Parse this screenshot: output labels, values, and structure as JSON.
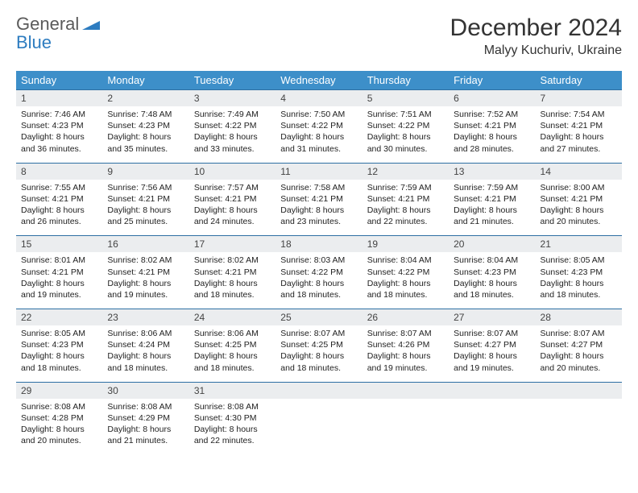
{
  "logo": {
    "line1": "General",
    "line2": "Blue"
  },
  "title": "December 2024",
  "location": "Malyy Kuchuriv, Ukraine",
  "colors": {
    "header_bg": "#3d8fc9",
    "header_text": "#ffffff",
    "num_row_bg": "#ebedef",
    "row_border": "#2d6fa3",
    "text": "#222222",
    "logo_gray": "#5a5a5a",
    "logo_blue": "#2d7cc0"
  },
  "day_names": [
    "Sunday",
    "Monday",
    "Tuesday",
    "Wednesday",
    "Thursday",
    "Friday",
    "Saturday"
  ],
  "weeks": [
    [
      {
        "n": "1",
        "sr": "7:46 AM",
        "ss": "4:23 PM",
        "dl": "8 hours and 36 minutes."
      },
      {
        "n": "2",
        "sr": "7:48 AM",
        "ss": "4:23 PM",
        "dl": "8 hours and 35 minutes."
      },
      {
        "n": "3",
        "sr": "7:49 AM",
        "ss": "4:22 PM",
        "dl": "8 hours and 33 minutes."
      },
      {
        "n": "4",
        "sr": "7:50 AM",
        "ss": "4:22 PM",
        "dl": "8 hours and 31 minutes."
      },
      {
        "n": "5",
        "sr": "7:51 AM",
        "ss": "4:22 PM",
        "dl": "8 hours and 30 minutes."
      },
      {
        "n": "6",
        "sr": "7:52 AM",
        "ss": "4:21 PM",
        "dl": "8 hours and 28 minutes."
      },
      {
        "n": "7",
        "sr": "7:54 AM",
        "ss": "4:21 PM",
        "dl": "8 hours and 27 minutes."
      }
    ],
    [
      {
        "n": "8",
        "sr": "7:55 AM",
        "ss": "4:21 PM",
        "dl": "8 hours and 26 minutes."
      },
      {
        "n": "9",
        "sr": "7:56 AM",
        "ss": "4:21 PM",
        "dl": "8 hours and 25 minutes."
      },
      {
        "n": "10",
        "sr": "7:57 AM",
        "ss": "4:21 PM",
        "dl": "8 hours and 24 minutes."
      },
      {
        "n": "11",
        "sr": "7:58 AM",
        "ss": "4:21 PM",
        "dl": "8 hours and 23 minutes."
      },
      {
        "n": "12",
        "sr": "7:59 AM",
        "ss": "4:21 PM",
        "dl": "8 hours and 22 minutes."
      },
      {
        "n": "13",
        "sr": "7:59 AM",
        "ss": "4:21 PM",
        "dl": "8 hours and 21 minutes."
      },
      {
        "n": "14",
        "sr": "8:00 AM",
        "ss": "4:21 PM",
        "dl": "8 hours and 20 minutes."
      }
    ],
    [
      {
        "n": "15",
        "sr": "8:01 AM",
        "ss": "4:21 PM",
        "dl": "8 hours and 19 minutes."
      },
      {
        "n": "16",
        "sr": "8:02 AM",
        "ss": "4:21 PM",
        "dl": "8 hours and 19 minutes."
      },
      {
        "n": "17",
        "sr": "8:02 AM",
        "ss": "4:21 PM",
        "dl": "8 hours and 18 minutes."
      },
      {
        "n": "18",
        "sr": "8:03 AM",
        "ss": "4:22 PM",
        "dl": "8 hours and 18 minutes."
      },
      {
        "n": "19",
        "sr": "8:04 AM",
        "ss": "4:22 PM",
        "dl": "8 hours and 18 minutes."
      },
      {
        "n": "20",
        "sr": "8:04 AM",
        "ss": "4:23 PM",
        "dl": "8 hours and 18 minutes."
      },
      {
        "n": "21",
        "sr": "8:05 AM",
        "ss": "4:23 PM",
        "dl": "8 hours and 18 minutes."
      }
    ],
    [
      {
        "n": "22",
        "sr": "8:05 AM",
        "ss": "4:23 PM",
        "dl": "8 hours and 18 minutes."
      },
      {
        "n": "23",
        "sr": "8:06 AM",
        "ss": "4:24 PM",
        "dl": "8 hours and 18 minutes."
      },
      {
        "n": "24",
        "sr": "8:06 AM",
        "ss": "4:25 PM",
        "dl": "8 hours and 18 minutes."
      },
      {
        "n": "25",
        "sr": "8:07 AM",
        "ss": "4:25 PM",
        "dl": "8 hours and 18 minutes."
      },
      {
        "n": "26",
        "sr": "8:07 AM",
        "ss": "4:26 PM",
        "dl": "8 hours and 19 minutes."
      },
      {
        "n": "27",
        "sr": "8:07 AM",
        "ss": "4:27 PM",
        "dl": "8 hours and 19 minutes."
      },
      {
        "n": "28",
        "sr": "8:07 AM",
        "ss": "4:27 PM",
        "dl": "8 hours and 20 minutes."
      }
    ],
    [
      {
        "n": "29",
        "sr": "8:08 AM",
        "ss": "4:28 PM",
        "dl": "8 hours and 20 minutes."
      },
      {
        "n": "30",
        "sr": "8:08 AM",
        "ss": "4:29 PM",
        "dl": "8 hours and 21 minutes."
      },
      {
        "n": "31",
        "sr": "8:08 AM",
        "ss": "4:30 PM",
        "dl": "8 hours and 22 minutes."
      },
      {
        "empty": true
      },
      {
        "empty": true
      },
      {
        "empty": true
      },
      {
        "empty": true
      }
    ]
  ],
  "labels": {
    "sunrise": "Sunrise:",
    "sunset": "Sunset:",
    "daylight": "Daylight:"
  }
}
